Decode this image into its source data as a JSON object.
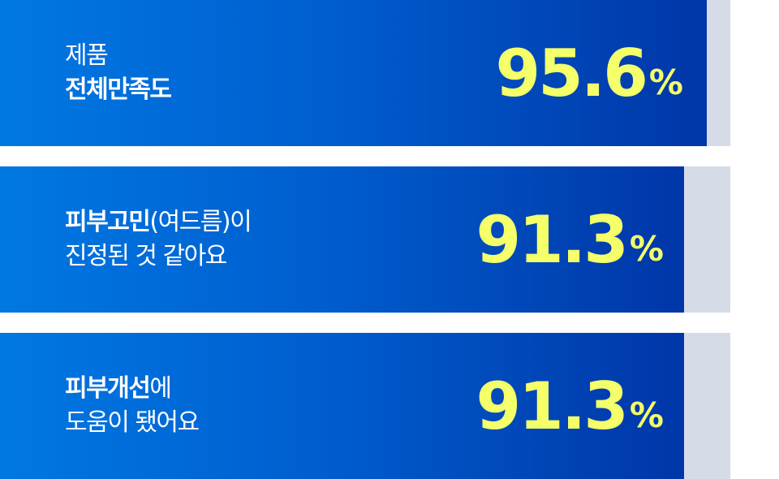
{
  "colors": {
    "fill_start": "#0078e2",
    "fill_end": "#0036a8",
    "track": "#d6dbe8",
    "value_text": "#f4ff6a",
    "label_text": "#ffffff"
  },
  "items": [
    {
      "line1_normal": "제품",
      "line1_bold": "",
      "line2_bold": "전체만족도",
      "line2_normal": "",
      "value": "95.6",
      "value_num": 95.6,
      "unit": "%"
    },
    {
      "line1_bold": "피부고민",
      "line1_normal": "(여드름)이",
      "line2_bold": "",
      "line2_normal": "진정된 것 같아요",
      "value": "91.3",
      "value_num": 91.3,
      "unit": "%"
    },
    {
      "line1_bold": "피부개선",
      "line1_normal": "에",
      "line2_bold": "",
      "line2_normal": "도움이 됐어요",
      "value": "91.3",
      "value_num": 91.3,
      "unit": "%"
    }
  ]
}
